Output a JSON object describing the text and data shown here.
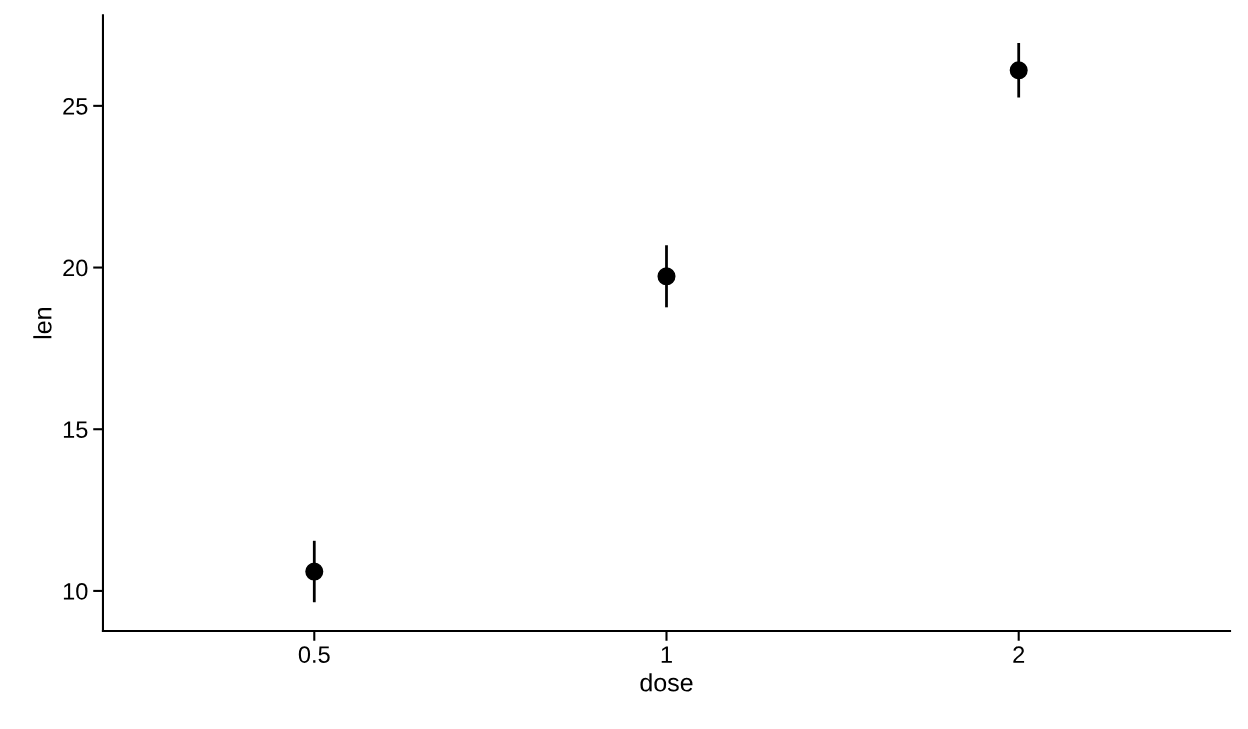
{
  "chart_data": {
    "type": "scatter",
    "xlabel": "dose",
    "ylabel": "len",
    "categories": [
      "0.5",
      "1",
      "2"
    ],
    "series": [
      {
        "color": "#000000",
        "values": [
          10.6,
          19.73,
          26.1
        ],
        "errors": [
          0.95,
          0.96,
          0.84
        ]
      }
    ],
    "ylim": [
      8.76,
      27.8
    ],
    "yticks": [
      10,
      15,
      20,
      25
    ],
    "grid": false,
    "marker": "circle"
  }
}
